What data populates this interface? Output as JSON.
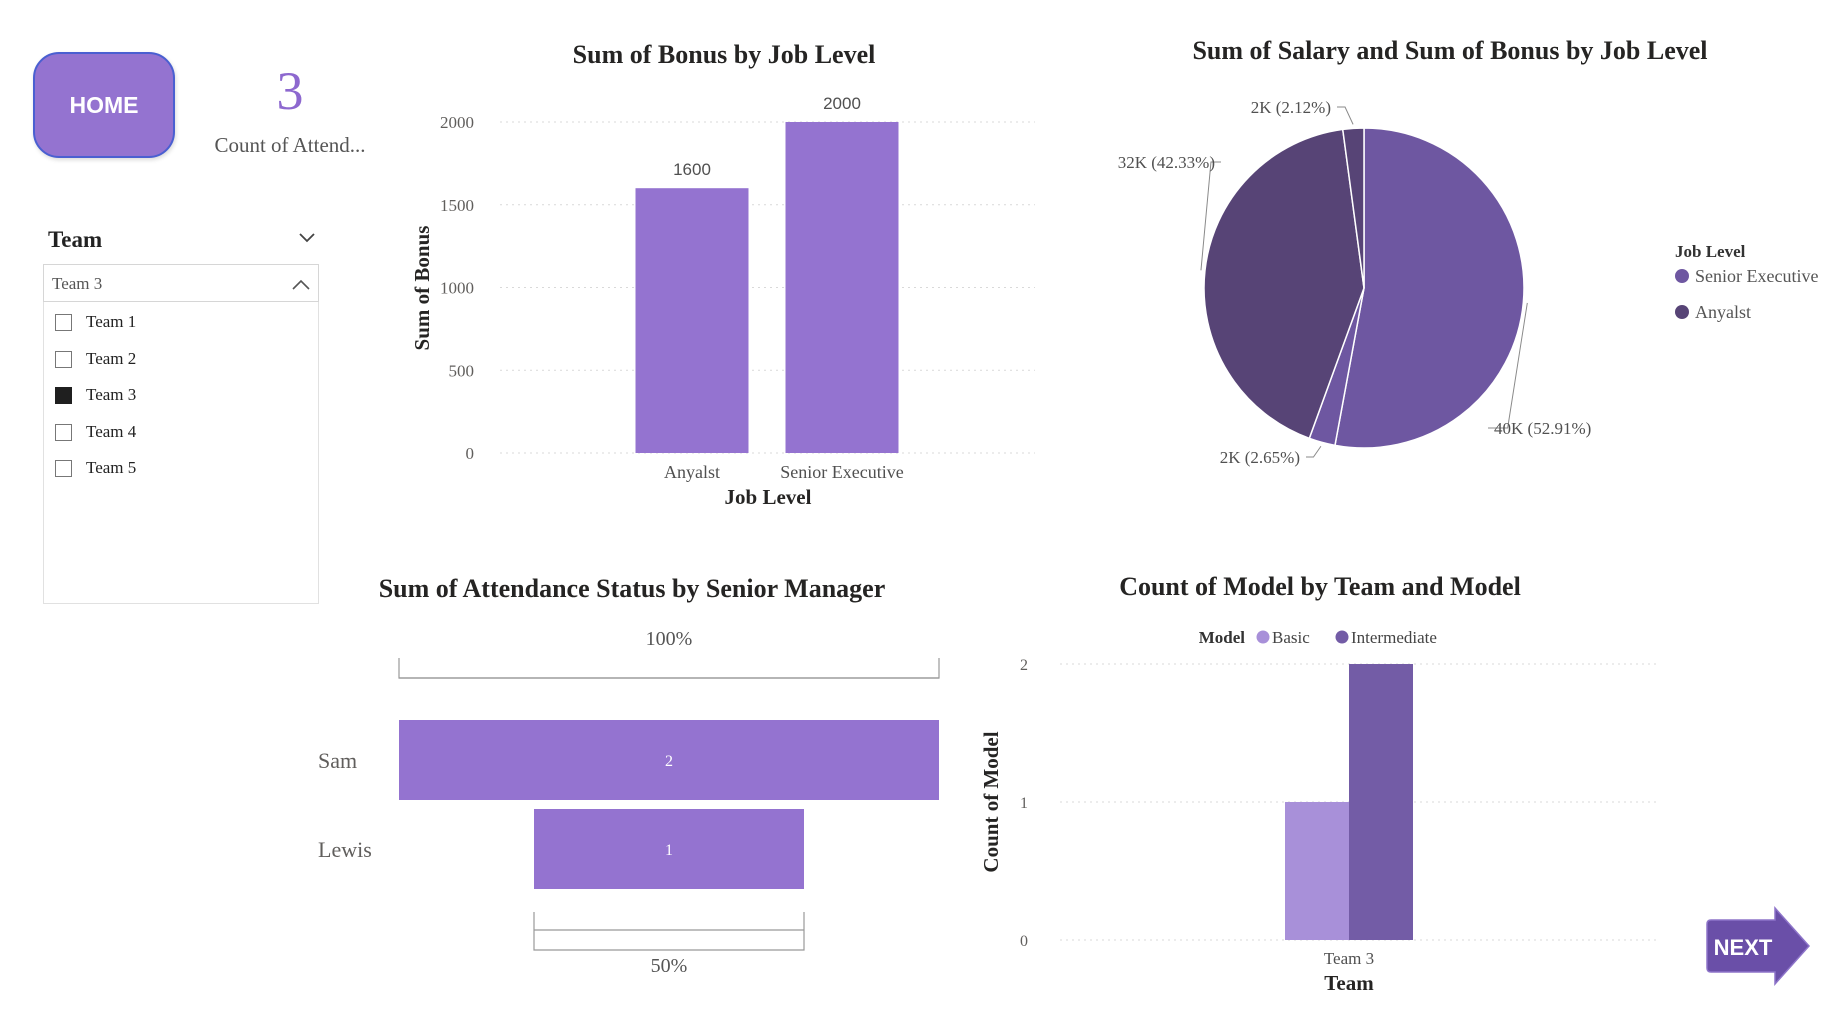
{
  "nav": {
    "home_label": "HOME",
    "next_label": "NEXT"
  },
  "card": {
    "value": "3",
    "label": "Count of Attend..."
  },
  "slicer": {
    "title": "Team",
    "selected": "Team 3",
    "options": [
      {
        "label": "Team 1",
        "checked": false
      },
      {
        "label": "Team 2",
        "checked": false
      },
      {
        "label": "Team 3",
        "checked": true
      },
      {
        "label": "Team 4",
        "checked": false
      },
      {
        "label": "Team 5",
        "checked": false
      }
    ]
  },
  "colors": {
    "accent": "#9473d0",
    "dark_purple": "#574476",
    "mid_purple": "#6e57a1",
    "light_purple": "#a890d9",
    "model_inter": "#735ca6"
  },
  "chart_data": [
    {
      "type": "bar",
      "title": "Sum of Bonus by Job Level",
      "xlabel": "Job Level",
      "ylabel": "Sum of Bonus",
      "categories": [
        "Anyalst",
        "Senior Executive"
      ],
      "values": [
        1600,
        2000
      ],
      "data_labels": [
        "1600",
        "2000"
      ],
      "ylim": [
        0,
        2000
      ],
      "yticks": [
        "0",
        "500",
        "1000",
        "1500",
        "2000"
      ],
      "grid": true
    },
    {
      "type": "pie",
      "title": "Sum of Salary and Sum of Bonus by Job Level",
      "legend_title": "Job Level",
      "legend": [
        "Senior Executive",
        "Anyalst"
      ],
      "legend_position": "right",
      "slices": [
        {
          "label": "40K (52.91%)",
          "value": 52.91,
          "group": "Senior Executive"
        },
        {
          "label": "2K (2.65%)",
          "value": 2.65,
          "group": "Senior Executive"
        },
        {
          "label": "32K (42.33%)",
          "value": 42.33,
          "group": "Anyalst"
        },
        {
          "label": "2K (2.12%)",
          "value": 2.12,
          "group": "Anyalst"
        }
      ]
    },
    {
      "type": "funnel",
      "title": "Sum of Attendance Status by Senior Manager",
      "categories": [
        "Sam",
        "Lewis"
      ],
      "values": [
        2,
        1
      ],
      "data_labels": [
        "2",
        "1"
      ],
      "top_percent": "100%",
      "bottom_percent": "50%"
    },
    {
      "type": "bar",
      "title": "Count of Model by Team and Model",
      "xlabel": "Team",
      "ylabel": "Count of Model",
      "legend_title": "Model",
      "legend_position": "top",
      "categories": [
        "Team 3"
      ],
      "series": [
        {
          "name": "Basic",
          "values": [
            1
          ]
        },
        {
          "name": "Intermediate",
          "values": [
            2
          ]
        }
      ],
      "ylim": [
        0,
        2
      ],
      "yticks": [
        "0",
        "1",
        "2"
      ],
      "grid": true
    }
  ]
}
